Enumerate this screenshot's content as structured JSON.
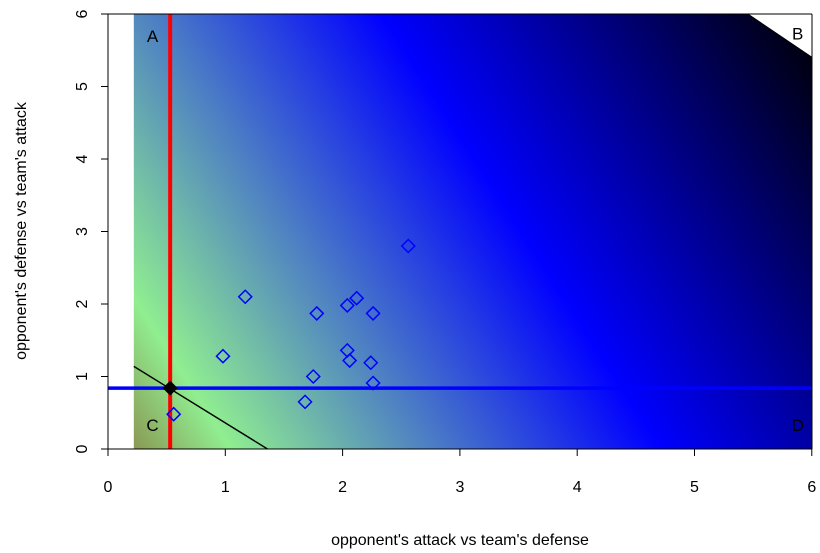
{
  "chart_data": {
    "type": "scatter",
    "title": "",
    "xlabel": "opponent's attack vs team's defense",
    "ylabel": "opponent's defense vs team's attack",
    "xlim": [
      0,
      6
    ],
    "ylim": [
      0,
      6
    ],
    "xticks": [
      "0",
      "1",
      "2",
      "3",
      "4",
      "5",
      "6"
    ],
    "yticks": [
      "0",
      "1",
      "2",
      "3",
      "4",
      "5",
      "6"
    ],
    "background": {
      "type": "gradient",
      "x_start": 0.22,
      "colors": {
        "low": "#8a9a55",
        "mid_low": "#90ee90",
        "mid": "#0000ff",
        "high": "#000000"
      }
    },
    "vertical_line": {
      "x": 0.53,
      "color": "#ff0000"
    },
    "horizontal_line": {
      "y": 0.84,
      "color": "#0000ff"
    },
    "diagonal_line": {
      "x": [
        0.22,
        1.36
      ],
      "y": [
        1.14,
        0.0
      ],
      "color": "#000000"
    },
    "reference_point": {
      "x": 0.53,
      "y": 0.84,
      "color": "#000000"
    },
    "white_corner": {
      "x": [
        5.4,
        6.04,
        6.04
      ],
      "y": [
        6.06,
        5.36,
        6.06
      ]
    },
    "points": [
      {
        "x": 0.56,
        "y": 0.48
      },
      {
        "x": 0.98,
        "y": 1.28
      },
      {
        "x": 1.17,
        "y": 2.1
      },
      {
        "x": 1.68,
        "y": 0.65
      },
      {
        "x": 1.75,
        "y": 1.0
      },
      {
        "x": 1.78,
        "y": 1.87
      },
      {
        "x": 2.04,
        "y": 1.98
      },
      {
        "x": 2.04,
        "y": 1.36
      },
      {
        "x": 2.06,
        "y": 1.22
      },
      {
        "x": 2.12,
        "y": 2.08
      },
      {
        "x": 2.24,
        "y": 1.19
      },
      {
        "x": 2.26,
        "y": 0.91
      },
      {
        "x": 2.26,
        "y": 1.87
      },
      {
        "x": 2.56,
        "y": 2.8
      }
    ],
    "point_color": "#0000ff",
    "region_labels": [
      {
        "text": "A",
        "x": 0.38,
        "y": 5.7
      },
      {
        "text": "B",
        "x": 5.88,
        "y": 5.73
      },
      {
        "text": "C",
        "x": 0.38,
        "y": 0.33
      },
      {
        "text": "D",
        "x": 5.88,
        "y": 0.33
      }
    ]
  }
}
